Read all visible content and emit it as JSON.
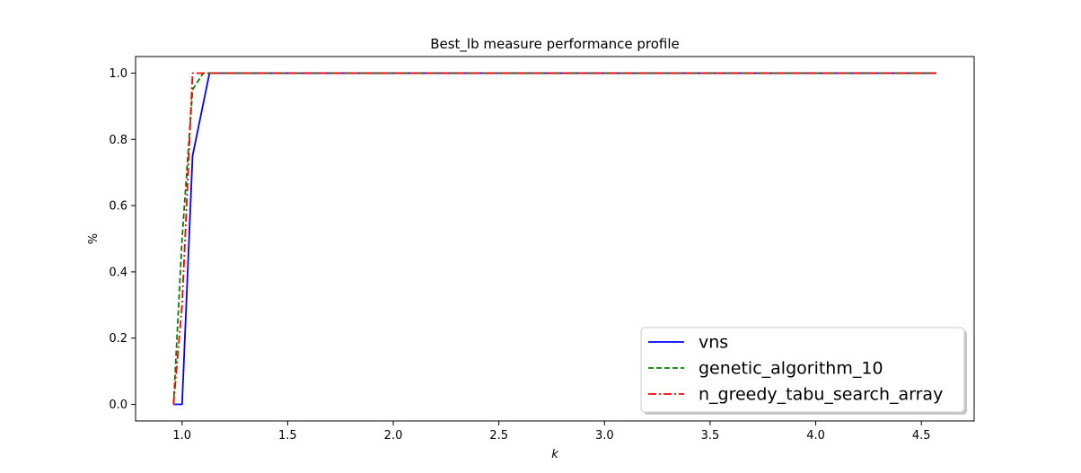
{
  "chart_data": {
    "type": "line",
    "title": "Best_lb measure performance profile",
    "xlabel": "k",
    "ylabel": "%",
    "xlim": [
      0.78,
      4.75
    ],
    "ylim": [
      -0.05,
      1.05
    ],
    "x_ticks": [
      "1.0",
      "1.5",
      "2.0",
      "2.5",
      "3.0",
      "3.5",
      "4.0",
      "4.5"
    ],
    "y_ticks": [
      "0.0",
      "0.2",
      "0.4",
      "0.6",
      "0.8",
      "1.0"
    ],
    "grid": false,
    "legend_position": "lower-right",
    "series": [
      {
        "name": "vns",
        "color": "#0000ff",
        "dash": "solid",
        "x": [
          0.96,
          1.0,
          1.05,
          1.13,
          4.57
        ],
        "y": [
          0.0,
          0.0,
          0.75,
          1.0,
          1.0
        ]
      },
      {
        "name": "genetic_algorithm_10",
        "color": "#008000",
        "dash": "dashed",
        "x": [
          0.96,
          1.0,
          1.05,
          1.1,
          4.57
        ],
        "y": [
          0.0,
          0.5,
          0.95,
          1.0,
          1.0
        ]
      },
      {
        "name": "n_greedy_tabu_search_array",
        "color": "#ff0000",
        "dash": "dashdot",
        "x": [
          0.96,
          1.0,
          1.05,
          4.57
        ],
        "y": [
          0.0,
          0.3,
          1.0,
          1.0
        ]
      }
    ]
  }
}
